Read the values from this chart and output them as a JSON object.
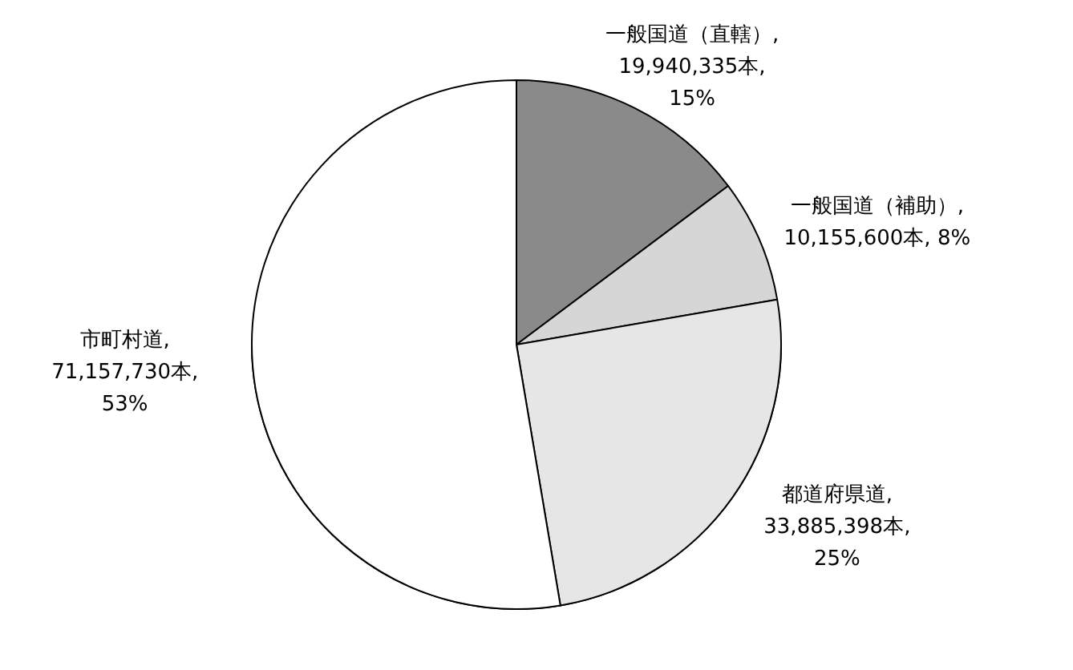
{
  "chart_data": {
    "type": "pie",
    "categories": [
      "一般国道（直轄）",
      "一般国道（補助）",
      "都道府県道",
      "市町村道"
    ],
    "values": [
      19940335,
      10155600,
      33885398,
      71157730
    ],
    "value_labels": [
      ",\n19,940,335本,\n15%",
      ",\n10,155,600本, 8%",
      ",\n33,885,398本,\n25%",
      ",\n71,157,730本,\n53%"
    ],
    "colors": [
      "#8a8a8a",
      "#d6d6d6",
      "#e6e6e6",
      "#ffffff"
    ]
  }
}
